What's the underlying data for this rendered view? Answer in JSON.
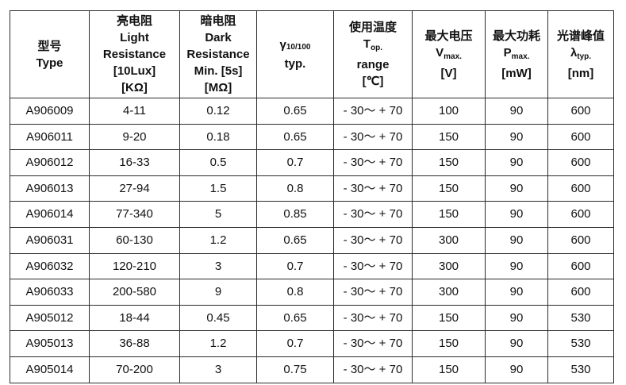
{
  "colors": {
    "border": "#2b2b2b",
    "text": "#111111",
    "background": "#ffffff"
  },
  "table": {
    "header": {
      "type": {
        "cn": "型号",
        "en": "Type"
      },
      "light_resistance": {
        "cn": "亮电阻",
        "l1": "Light",
        "l2": "Resistance",
        "l3": "[10Lux]",
        "l4": "[KΩ]"
      },
      "dark_resistance": {
        "cn": "暗电阻",
        "l1": "Dark",
        "l2": "Resistance",
        "l3": "Min. [5s]",
        "l4": "[MΩ]"
      },
      "gamma": {
        "base": "γ",
        "sub": "10/100",
        "l2": "typ."
      },
      "op_temp": {
        "cn": "使用温度",
        "base": "T",
        "sub": "op.",
        "l2": "range",
        "l3": "[℃]"
      },
      "max_voltage": {
        "cn": "最大电压",
        "base": "V",
        "sub": "max.",
        "l2": "[V]"
      },
      "max_power": {
        "cn": "最大功耗",
        "base": "P",
        "sub": "max.",
        "l2": "[mW]"
      },
      "peak_wavelength": {
        "cn": "光谱峰值",
        "base": "λ",
        "sub": "typ.",
        "l2": "[nm]"
      }
    },
    "rows": [
      [
        "A906009",
        "4-11",
        "0.12",
        "0.65",
        "- 30～ + 70",
        "100",
        "90",
        "600"
      ],
      [
        "A906011",
        "9-20",
        "0.18",
        "0.65",
        "- 30～ + 70",
        "150",
        "90",
        "600"
      ],
      [
        "A906012",
        "16-33",
        "0.5",
        "0.7",
        "- 30～ + 70",
        "150",
        "90",
        "600"
      ],
      [
        "A906013",
        "27-94",
        "1.5",
        "0.8",
        "- 30～ + 70",
        "150",
        "90",
        "600"
      ],
      [
        "A906014",
        "77-340",
        "5",
        "0.85",
        "- 30～ + 70",
        "150",
        "90",
        "600"
      ],
      [
        "A906031",
        "60-130",
        "1.2",
        "0.65",
        "- 30～ + 70",
        "300",
        "90",
        "600"
      ],
      [
        "A906032",
        "120-210",
        "3",
        "0.7",
        "- 30～ + 70",
        "300",
        "90",
        "600"
      ],
      [
        "A906033",
        "200-580",
        "9",
        "0.8",
        "- 30～ + 70",
        "300",
        "90",
        "600"
      ],
      [
        "A905012",
        "18-44",
        "0.45",
        "0.65",
        "- 30～ + 70",
        "150",
        "90",
        "530"
      ],
      [
        "A905013",
        "36-88",
        "1.2",
        "0.7",
        "- 30～ + 70",
        "150",
        "90",
        "530"
      ],
      [
        "A905014",
        "70-200",
        "3",
        "0.75",
        "- 30～ + 70",
        "150",
        "90",
        "530"
      ]
    ]
  }
}
